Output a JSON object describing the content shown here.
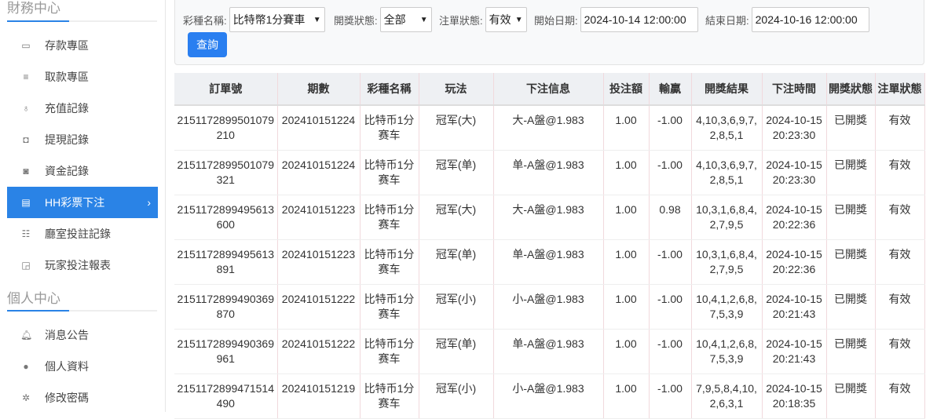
{
  "sidebar": {
    "finance_title": "財務中心",
    "finance_items": [
      {
        "label": "存款專區",
        "icon": "card-icon"
      },
      {
        "label": "取款專區",
        "icon": "hand-money-icon"
      },
      {
        "label": "充值記錄",
        "icon": "money-bag-icon"
      },
      {
        "label": "提現記錄",
        "icon": "wallet-icon"
      },
      {
        "label": "資金記錄",
        "icon": "piggy-bank-icon"
      },
      {
        "label": "HH彩票下注",
        "icon": "list-icon",
        "active": true
      },
      {
        "label": "廳室投註記錄",
        "icon": "bullet-list-icon"
      },
      {
        "label": "玩家投注報表",
        "icon": "chart-icon"
      }
    ],
    "personal_title": "個人中心",
    "personal_items": [
      {
        "label": "消息公告",
        "icon": "bell-icon"
      },
      {
        "label": "個人資料",
        "icon": "user-icon"
      },
      {
        "label": "修改密碼",
        "icon": "gear-icon"
      }
    ],
    "accent": "#2a83e6"
  },
  "filter": {
    "lottery_label": "彩種名稱:",
    "lottery_value": "比特幣1分賽車",
    "draw_status_label": "開獎狀態:",
    "draw_status_value": "全部",
    "bet_status_label": "注單狀態:",
    "bet_status_value": "有效",
    "start_label": "開始日期:",
    "start_value": "2024-10-14 12:00:00",
    "end_label": "結束日期:",
    "end_value": "2024-10-16 12:00:00",
    "query_label": "查詢"
  },
  "table": {
    "headers": [
      "訂單號",
      "期數",
      "彩種名稱",
      "玩法",
      "下注信息",
      "投注額",
      "輸贏",
      "開獎結果",
      "下注時間",
      "開獎狀態",
      "注單狀態"
    ],
    "rows": [
      [
        "2151172899501079210",
        "202410151224",
        "比特币1分赛车",
        "冠军(大)",
        "大-A盤@1.983",
        "1.00",
        "-1.00",
        "4,10,3,6,9,7,2,8,5,1",
        "2024-10-15 20:23:30",
        "已開獎",
        "有效"
      ],
      [
        "2151172899501079321",
        "202410151224",
        "比特币1分赛车",
        "冠军(单)",
        "单-A盤@1.983",
        "1.00",
        "-1.00",
        "4,10,3,6,9,7,2,8,5,1",
        "2024-10-15 20:23:30",
        "已開獎",
        "有效"
      ],
      [
        "2151172899495613600",
        "202410151223",
        "比特币1分赛车",
        "冠军(大)",
        "大-A盤@1.983",
        "1.00",
        "0.98",
        "10,3,1,6,8,4,2,7,9,5",
        "2024-10-15 20:22:36",
        "已開獎",
        "有效"
      ],
      [
        "2151172899495613891",
        "202410151223",
        "比特币1分赛车",
        "冠军(单)",
        "单-A盤@1.983",
        "1.00",
        "-1.00",
        "10,3,1,6,8,4,2,7,9,5",
        "2024-10-15 20:22:36",
        "已開獎",
        "有效"
      ],
      [
        "2151172899490369870",
        "202410151222",
        "比特币1分赛车",
        "冠军(小)",
        "小-A盤@1.983",
        "1.00",
        "-1.00",
        "10,4,1,2,6,8,7,5,3,9",
        "2024-10-15 20:21:43",
        "已開獎",
        "有效"
      ],
      [
        "2151172899490369961",
        "202410151222",
        "比特币1分赛车",
        "冠军(单)",
        "单-A盤@1.983",
        "1.00",
        "-1.00",
        "10,4,1,2,6,8,7,5,3,9",
        "2024-10-15 20:21:43",
        "已開獎",
        "有效"
      ],
      [
        "2151172899471514490",
        "202410151219",
        "比特币1分赛车",
        "冠军(小)",
        "小-A盤@1.983",
        "1.00",
        "-1.00",
        "7,9,5,8,4,10,2,6,3,1",
        "2024-10-15 20:18:35",
        "已開獎",
        "有效"
      ]
    ]
  }
}
